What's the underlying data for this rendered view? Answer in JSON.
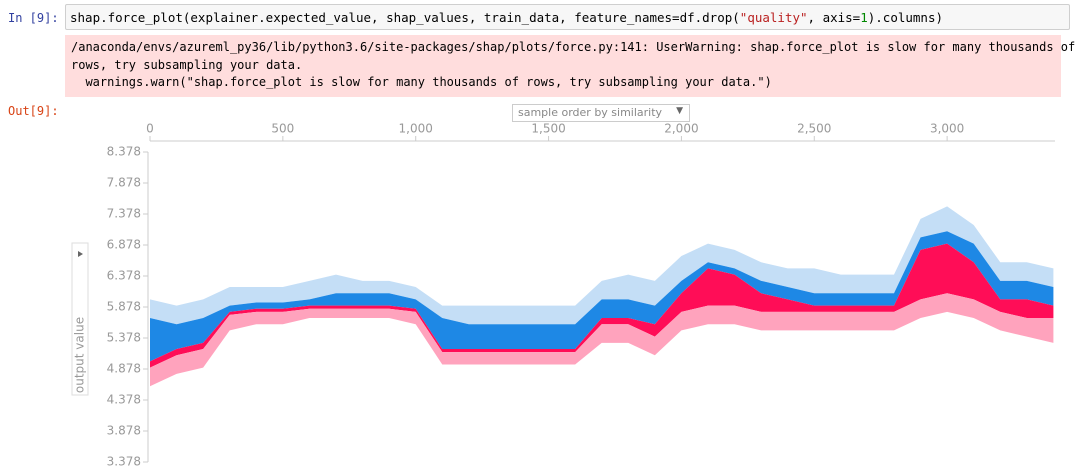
{
  "cell_in": {
    "prompt": "In [9]:",
    "code": [
      "shap.force_plot(explainer.expected_value, shap_values, train_data, feature_names=df.drop(",
      "\"quality\"",
      ", axis=",
      "1",
      ").columns)"
    ]
  },
  "warning": [
    "/anaconda/envs/azureml_py36/lib/python3.6/site-packages/shap/plots/force.py:141: UserWarning: shap.force_plot is slow for many thousands of",
    "rows, try subsampling your data.",
    "  warnings.warn(\"shap.force_plot is slow for many thousands of rows, try subsampling your data.\")"
  ],
  "cell_out": {
    "prompt": "Out[9]:"
  },
  "chart_data": {
    "type": "force",
    "dropdown": "sample order by similarity",
    "ylabel": "output value",
    "xlim": [
      0,
      3406
    ],
    "ylim": [
      3.378,
      8.378
    ],
    "xticks": [
      0,
      500,
      {
        "value": 1000,
        "label": "1,000"
      },
      {
        "value": 1500,
        "label": "1,500"
      },
      {
        "value": 2000,
        "label": "2,000"
      },
      {
        "value": 2500,
        "label": "2,500"
      },
      {
        "value": 3000,
        "label": "3,000"
      }
    ],
    "yticks": [
      3.378,
      3.878,
      4.378,
      4.878,
      5.378,
      5.878,
      6.378,
      6.878,
      7.378,
      7.878,
      8.378
    ],
    "colors": [
      "#c4def6",
      "#1e88e5",
      "#ff0d57",
      "#ffa3bd"
    ],
    "x": [
      0,
      100,
      200,
      300,
      400,
      500,
      600,
      700,
      800,
      900,
      1000,
      1100,
      1200,
      1300,
      1400,
      1500,
      1600,
      1700,
      1800,
      1900,
      2000,
      2100,
      2200,
      2300,
      2400,
      2500,
      2600,
      2700,
      2800,
      2900,
      3000,
      3100,
      3200,
      3300,
      3400
    ],
    "bounds": [
      [
        6.0,
        5.9,
        6.0,
        6.2,
        6.2,
        6.2,
        6.3,
        6.4,
        6.3,
        6.3,
        6.2,
        5.9,
        5.9,
        5.9,
        5.9,
        5.9,
        5.9,
        6.3,
        6.4,
        6.3,
        6.7,
        6.9,
        6.8,
        6.6,
        6.5,
        6.5,
        6.4,
        6.4,
        6.4,
        7.3,
        7.5,
        7.2,
        6.6,
        6.6,
        6.5
      ],
      [
        5.7,
        5.6,
        5.7,
        5.9,
        5.95,
        5.95,
        6.0,
        6.1,
        6.1,
        6.1,
        6.0,
        5.7,
        5.6,
        5.6,
        5.6,
        5.6,
        5.6,
        6.0,
        6.0,
        5.9,
        6.3,
        6.6,
        6.5,
        6.3,
        6.2,
        6.1,
        6.1,
        6.1,
        6.1,
        7.0,
        7.1,
        6.9,
        6.3,
        6.3,
        6.2
      ],
      [
        5.0,
        5.2,
        5.3,
        5.8,
        5.85,
        5.85,
        5.9,
        5.9,
        5.9,
        5.9,
        5.85,
        5.2,
        5.2,
        5.2,
        5.2,
        5.2,
        5.2,
        5.7,
        5.7,
        5.6,
        6.1,
        6.5,
        6.4,
        6.1,
        6.0,
        5.9,
        5.9,
        5.9,
        5.9,
        6.8,
        6.9,
        6.6,
        6.0,
        6.0,
        5.9
      ],
      [
        4.9,
        5.1,
        5.2,
        5.75,
        5.8,
        5.8,
        5.85,
        5.85,
        5.85,
        5.85,
        5.8,
        5.15,
        5.15,
        5.15,
        5.15,
        5.15,
        5.15,
        5.6,
        5.6,
        5.4,
        5.8,
        5.9,
        5.9,
        5.8,
        5.8,
        5.8,
        5.8,
        5.8,
        5.8,
        6.0,
        6.1,
        6.0,
        5.8,
        5.7,
        5.7
      ],
      [
        4.6,
        4.8,
        4.9,
        5.5,
        5.6,
        5.6,
        5.7,
        5.7,
        5.7,
        5.7,
        5.6,
        4.95,
        4.95,
        4.95,
        4.95,
        4.95,
        4.95,
        5.3,
        5.3,
        5.1,
        5.5,
        5.6,
        5.6,
        5.5,
        5.5,
        5.5,
        5.5,
        5.5,
        5.5,
        5.7,
        5.8,
        5.7,
        5.5,
        5.4,
        5.3
      ]
    ]
  }
}
